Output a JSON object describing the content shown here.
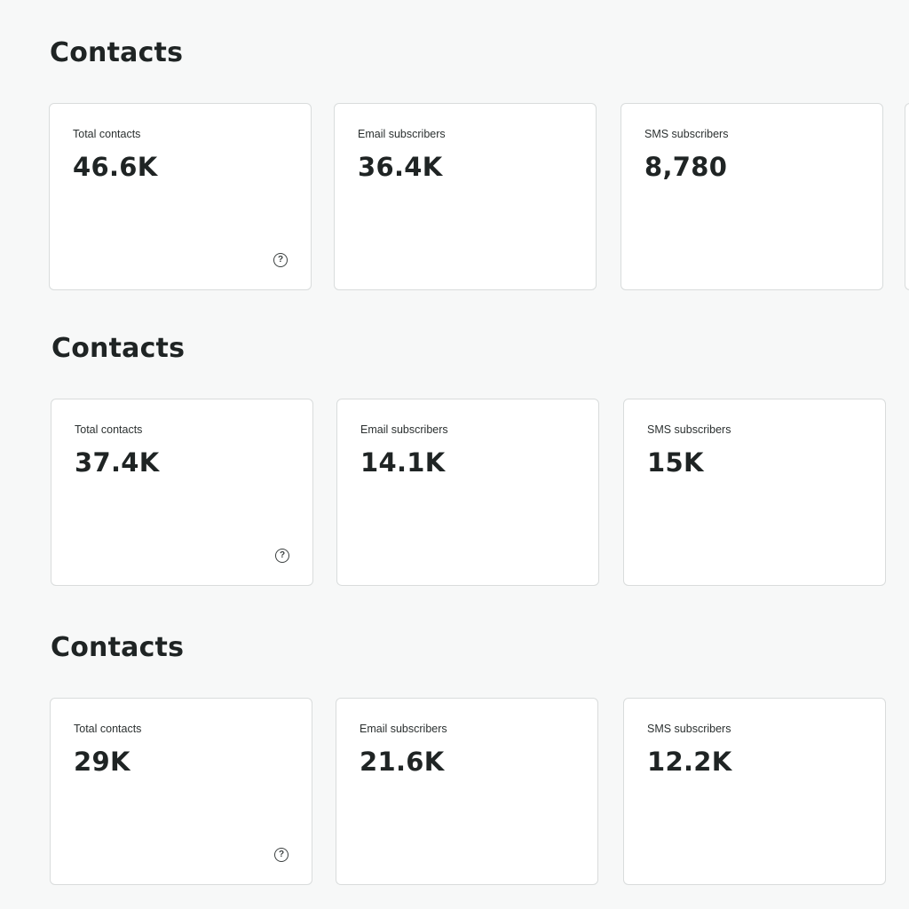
{
  "sections": [
    {
      "title": "Contacts",
      "cards": [
        {
          "label": "Total contacts",
          "value": "46.6K"
        },
        {
          "label": "Email subscribers",
          "value": "36.4K"
        },
        {
          "label": "SMS subscribers",
          "value": "8,780"
        }
      ],
      "help_icon": "?"
    },
    {
      "title": "Contacts",
      "cards": [
        {
          "label": "Total contacts",
          "value": "37.4K"
        },
        {
          "label": "Email subscribers",
          "value": "14.1K"
        },
        {
          "label": "SMS subscribers",
          "value": "15K"
        }
      ],
      "help_icon": "?"
    },
    {
      "title": "Contacts",
      "cards": [
        {
          "label": "Total contacts",
          "value": "29K"
        },
        {
          "label": "Email subscribers",
          "value": "21.6K"
        },
        {
          "label": "SMS subscribers",
          "value": "12.2K"
        }
      ],
      "help_icon": "?"
    }
  ],
  "icons": {
    "help": "question-circle-icon"
  }
}
